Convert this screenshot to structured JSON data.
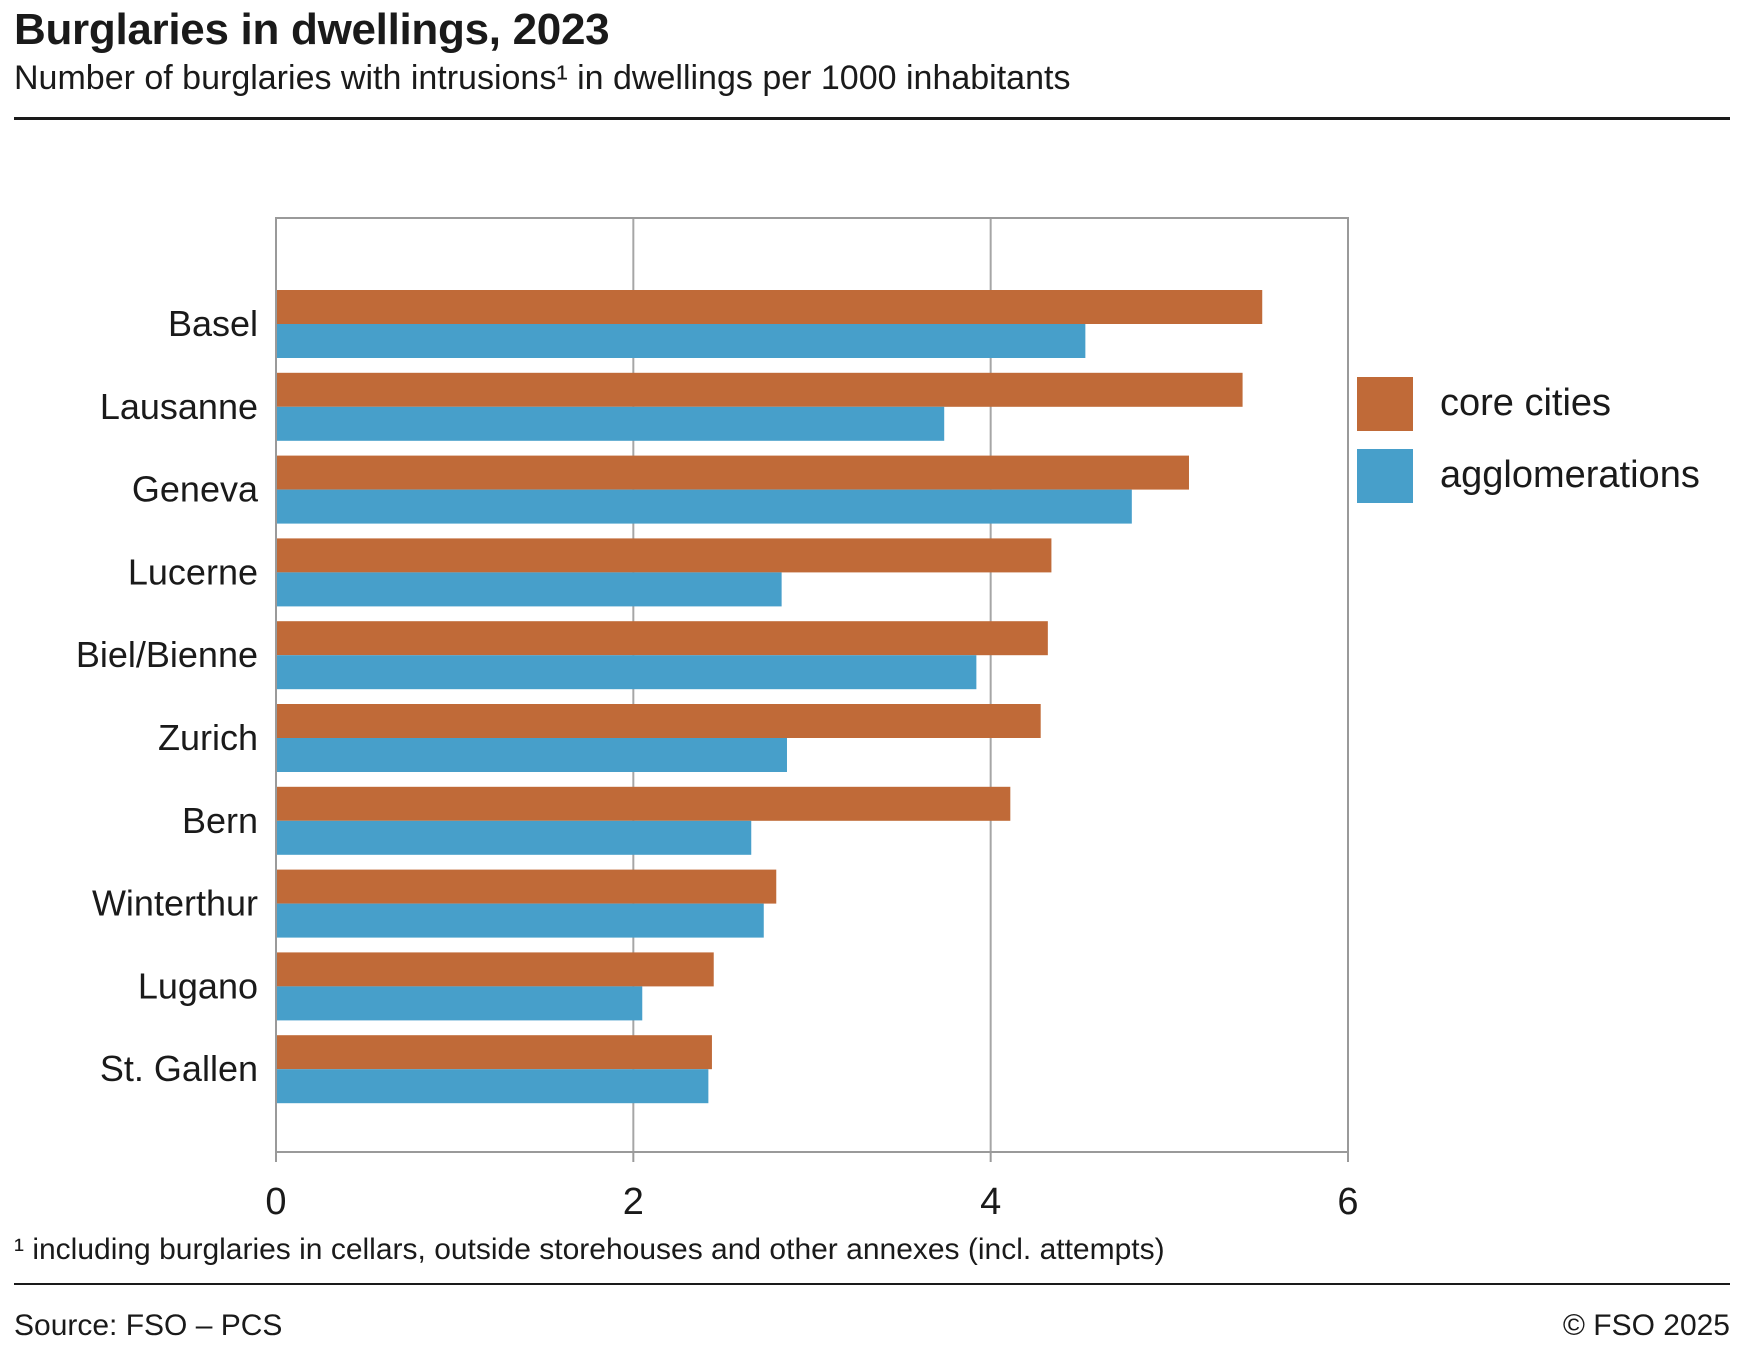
{
  "header": {
    "title": "Burglaries in dwellings, 2023",
    "subtitle": "Number of burglaries with intrusions¹ in dwellings per 1000 inhabitants"
  },
  "footer": {
    "footnote": "¹ including burglaries in cellars, outside storehouses and other annexes (incl. attempts)",
    "source": "Source: FSO – PCS",
    "copyright": "© FSO 2025"
  },
  "colors": {
    "core": "#c06a38",
    "agglo": "#479fca",
    "grid": "#a6a6a6",
    "frame": "#9a9a9a"
  },
  "chart_data": {
    "type": "bar",
    "orientation": "horizontal",
    "title": "Burglaries in dwellings, 2023",
    "xlabel": "",
    "ylabel": "",
    "xlim": [
      0,
      6
    ],
    "xticks": [
      0,
      2,
      4,
      6
    ],
    "grid": true,
    "legend_position": "right",
    "categories": [
      "Basel",
      "Lausanne",
      "Geneva",
      "Lucerne",
      "Biel/Bienne",
      "Zurich",
      "Bern",
      "Winterthur",
      "Lugano",
      "St. Gallen"
    ],
    "series": [
      {
        "name": "core cities",
        "color": "#c06a38",
        "values": [
          5.52,
          5.41,
          5.11,
          4.34,
          4.32,
          4.28,
          4.11,
          2.8,
          2.45,
          2.44
        ]
      },
      {
        "name": "agglomerations",
        "color": "#479fca",
        "values": [
          4.53,
          3.74,
          4.79,
          2.83,
          3.92,
          2.86,
          2.66,
          2.73,
          2.05,
          2.42
        ]
      }
    ]
  }
}
